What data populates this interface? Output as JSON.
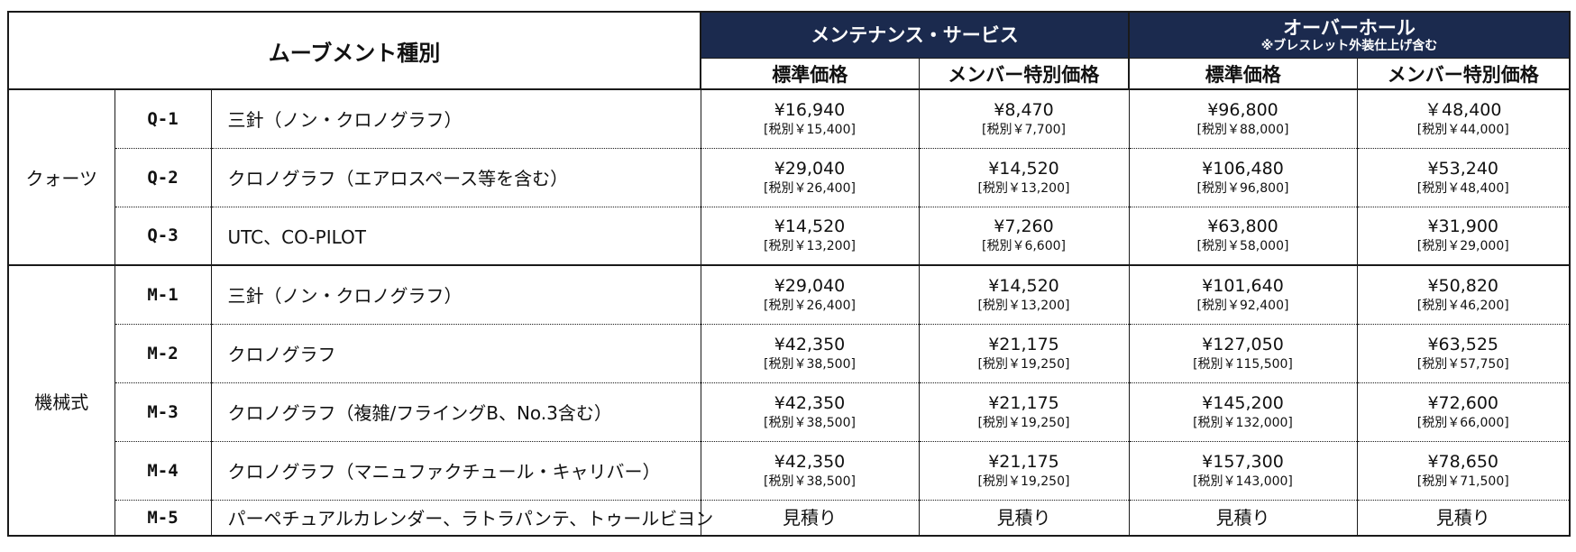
{
  "header": {
    "movement_type": "ムーブメント種別",
    "maintenance": {
      "title": "メンテナンス・サービス"
    },
    "overhaul": {
      "title": "オーバーホール",
      "note": "※ブレスレット外装仕上げ含む"
    },
    "standard_price": "標準価格",
    "member_price": "メンバー特別価格"
  },
  "groups": [
    {
      "name": "クォーツ",
      "rows": [
        {
          "code": "Q-1",
          "name": "三針（ノン・クロノグラフ）",
          "prices": [
            {
              "main": "¥16,940",
              "tax": "[税別￥15,400]"
            },
            {
              "main": "¥8,470",
              "tax": "[税別￥7,700]"
            },
            {
              "main": "¥96,800",
              "tax": "[税別￥88,000]"
            },
            {
              "main": "￥48,400",
              "tax": "[税別￥44,000]"
            }
          ]
        },
        {
          "code": "Q-2",
          "name": "クロノグラフ（エアロスペース等を含む）",
          "prices": [
            {
              "main": "¥29,040",
              "tax": "[税別￥26,400]"
            },
            {
              "main": "¥14,520",
              "tax": "[税別￥13,200]"
            },
            {
              "main": "¥106,480",
              "tax": "[税別￥96,800]"
            },
            {
              "main": "¥53,240",
              "tax": "[税別￥48,400]"
            }
          ]
        },
        {
          "code": "Q-3",
          "name": "UTC、CO-PILOT",
          "prices": [
            {
              "main": "¥14,520",
              "tax": "[税別￥13,200]"
            },
            {
              "main": "¥7,260",
              "tax": "[税別￥6,600]"
            },
            {
              "main": "¥63,800",
              "tax": "[税別￥58,000]"
            },
            {
              "main": "¥31,900",
              "tax": "[税別￥29,000]"
            }
          ]
        }
      ]
    },
    {
      "name": "機械式",
      "rows": [
        {
          "code": "M-1",
          "name": "三針（ノン・クロノグラフ）",
          "prices": [
            {
              "main": "¥29,040",
              "tax": "[税別￥26,400]"
            },
            {
              "main": "¥14,520",
              "tax": "[税別￥13,200]"
            },
            {
              "main": "¥101,640",
              "tax": "[税別￥92,400]"
            },
            {
              "main": "¥50,820",
              "tax": "[税別￥46,200]"
            }
          ]
        },
        {
          "code": "M-2",
          "name": "クロノグラフ",
          "prices": [
            {
              "main": "¥42,350",
              "tax": "[税別￥38,500]"
            },
            {
              "main": "¥21,175",
              "tax": "[税別￥19,250]"
            },
            {
              "main": "¥127,050",
              "tax": "[税別￥115,500]"
            },
            {
              "main": "¥63,525",
              "tax": "[税別￥57,750]"
            }
          ]
        },
        {
          "code": "M-3",
          "name": "クロノグラフ（複雑/フライングB、No.3含む）",
          "prices": [
            {
              "main": "¥42,350",
              "tax": "[税別￥38,500]"
            },
            {
              "main": "¥21,175",
              "tax": "[税別￥19,250]"
            },
            {
              "main": "¥145,200",
              "tax": "[税別￥132,000]"
            },
            {
              "main": "¥72,600",
              "tax": "[税別￥66,000]"
            }
          ]
        },
        {
          "code": "M-4",
          "name": "クロノグラフ（マニュファクチュール・キャリバー）",
          "prices": [
            {
              "main": "¥42,350",
              "tax": "[税別￥38,500]"
            },
            {
              "main": "¥21,175",
              "tax": "[税別￥19,250]"
            },
            {
              "main": "¥157,300",
              "tax": "[税別￥143,000]"
            },
            {
              "main": "¥78,650",
              "tax": "[税別￥71,500]"
            }
          ]
        },
        {
          "code": "M-5",
          "name": "パーペチュアルカレンダー、ラトラパンテ、トゥールビヨン",
          "prices": [
            {
              "main": "見積り"
            },
            {
              "main": "見積り"
            },
            {
              "main": "見積り"
            },
            {
              "main": "見積り"
            }
          ]
        }
      ]
    }
  ]
}
